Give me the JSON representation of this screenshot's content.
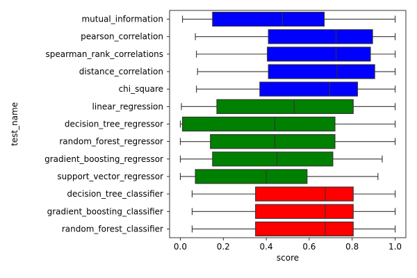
{
  "chart_data": {
    "type": "boxplot",
    "orientation": "horizontal",
    "xlabel": "score",
    "ylabel": "test_name",
    "xlim": [
      -0.05,
      1.05
    ],
    "xticks": [
      0.0,
      0.2,
      0.4,
      0.6,
      0.8,
      1.0
    ],
    "xtick_labels": [
      "0.0",
      "0.2",
      "0.4",
      "0.6",
      "0.8",
      "1.0"
    ],
    "grid": false,
    "categories": [
      "mutual_information",
      "pearson_correlation",
      "spearman_rank_correlations",
      "distance_correlation",
      "chi_square",
      "linear_regression",
      "decision_tree_regressor",
      "random_forest_regressor",
      "gradient_boosting_regressor",
      "support_vector_regressor",
      "decision_tree_classifier",
      "gradient_boosting_classifier",
      "random_forest_classifier"
    ],
    "boxes": [
      {
        "min": 0.01,
        "q1": 0.15,
        "median": 0.475,
        "q3": 0.67,
        "max": 1.0,
        "color": "#0000ff"
      },
      {
        "min": 0.07,
        "q1": 0.41,
        "median": 0.725,
        "q3": 0.895,
        "max": 1.0,
        "color": "#0000ff"
      },
      {
        "min": 0.075,
        "q1": 0.405,
        "median": 0.725,
        "q3": 0.885,
        "max": 1.0,
        "color": "#0000ff"
      },
      {
        "min": 0.08,
        "q1": 0.41,
        "median": 0.73,
        "q3": 0.905,
        "max": 1.0,
        "color": "#0000ff"
      },
      {
        "min": 0.075,
        "q1": 0.37,
        "median": 0.695,
        "q3": 0.825,
        "max": 1.0,
        "color": "#0000ff"
      },
      {
        "min": 0.005,
        "q1": 0.17,
        "median": 0.53,
        "q3": 0.805,
        "max": 1.0,
        "color": "#008000"
      },
      {
        "min": 0.0,
        "q1": 0.01,
        "median": 0.44,
        "q3": 0.72,
        "max": 1.0,
        "color": "#008000"
      },
      {
        "min": 0.0,
        "q1": 0.14,
        "median": 0.44,
        "q3": 0.72,
        "max": 1.0,
        "color": "#008000"
      },
      {
        "min": 0.0,
        "q1": 0.15,
        "median": 0.45,
        "q3": 0.71,
        "max": 0.94,
        "color": "#008000"
      },
      {
        "min": 0.0,
        "q1": 0.07,
        "median": 0.4,
        "q3": 0.59,
        "max": 0.92,
        "color": "#008000"
      },
      {
        "min": 0.055,
        "q1": 0.35,
        "median": 0.675,
        "q3": 0.805,
        "max": 1.0,
        "color": "#ff0000"
      },
      {
        "min": 0.055,
        "q1": 0.35,
        "median": 0.675,
        "q3": 0.805,
        "max": 1.0,
        "color": "#ff0000"
      },
      {
        "min": 0.055,
        "q1": 0.35,
        "median": 0.675,
        "q3": 0.805,
        "max": 1.0,
        "color": "#ff0000"
      }
    ]
  }
}
